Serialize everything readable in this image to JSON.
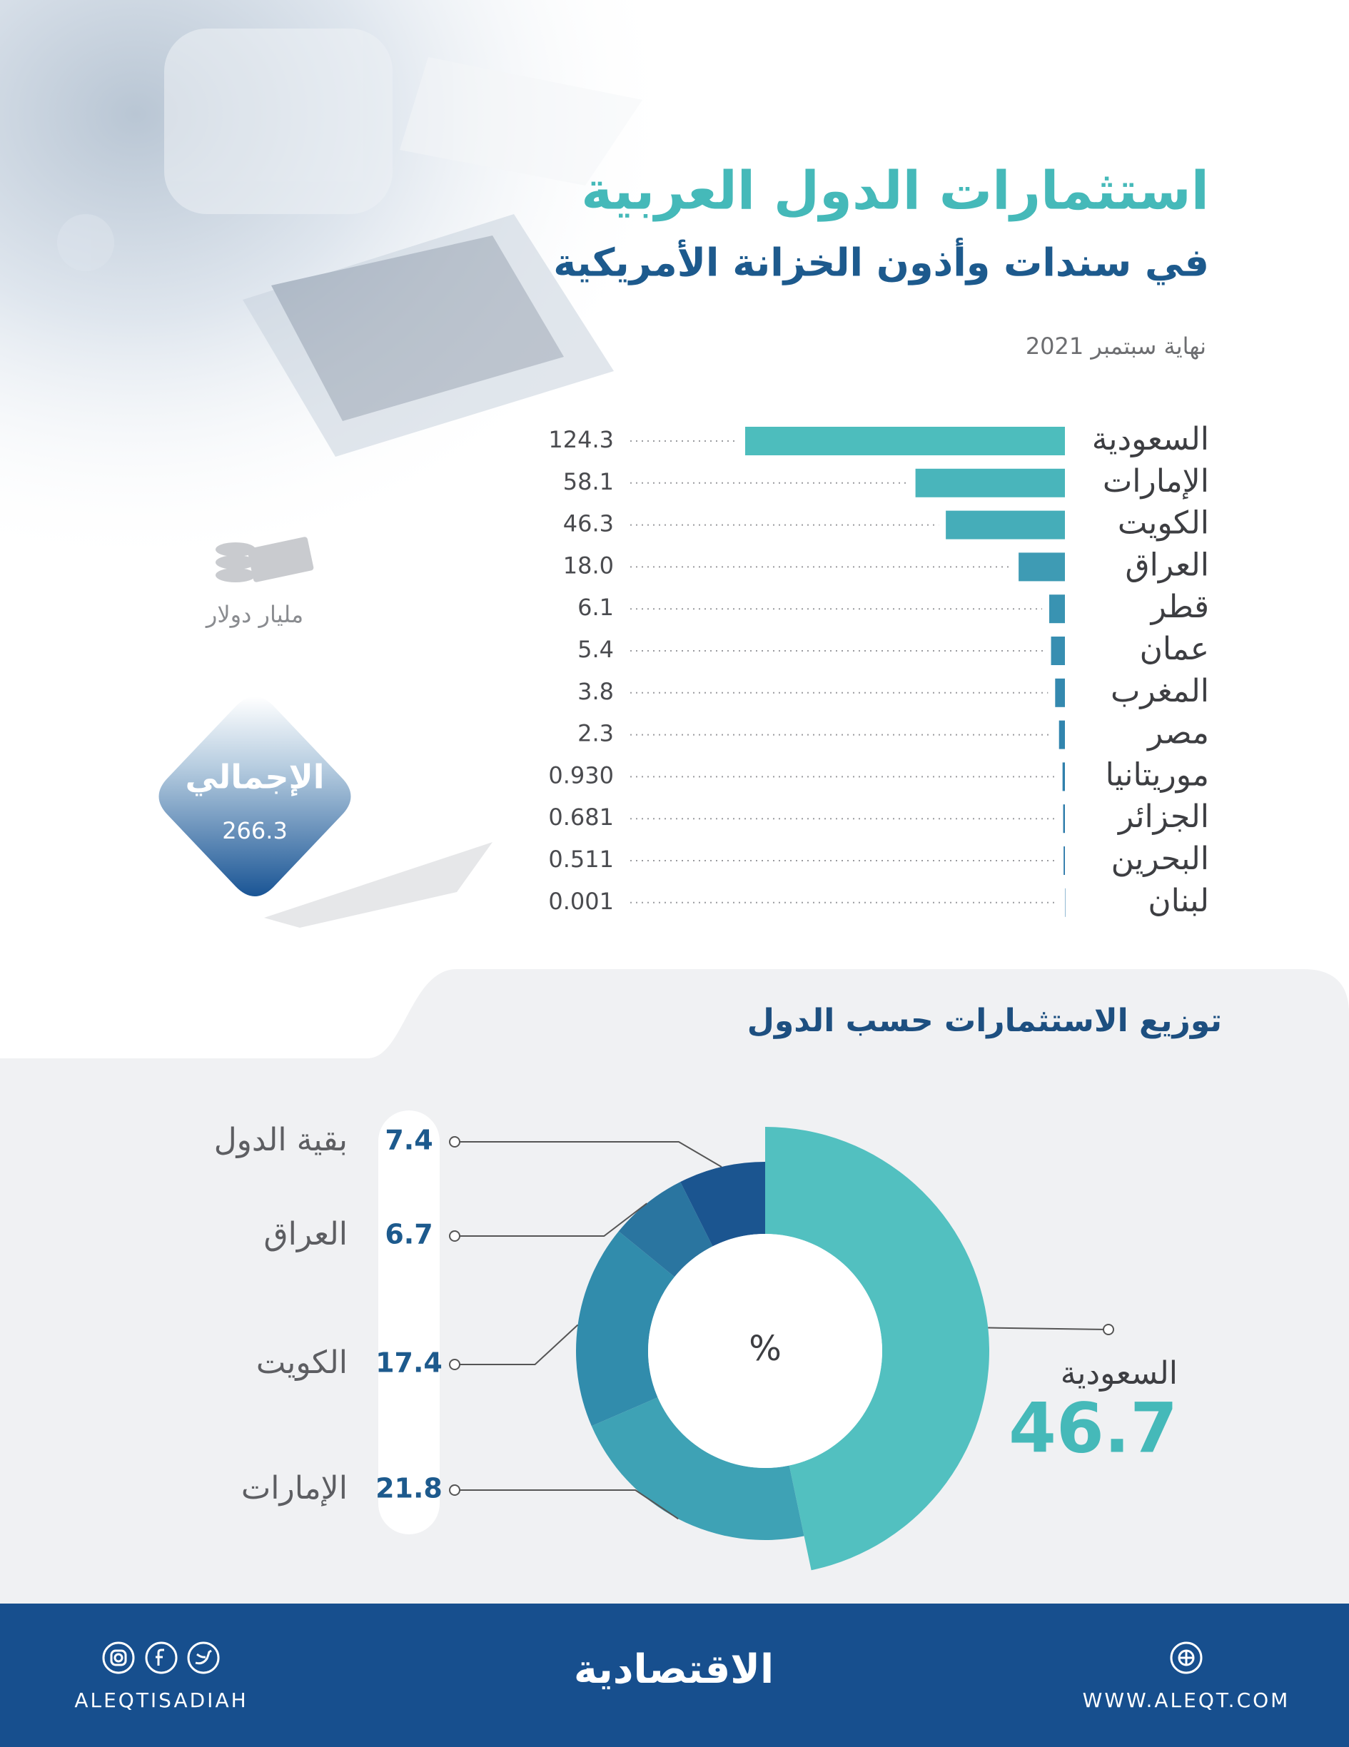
{
  "chart_data": [
    {
      "type": "bar",
      "title": "استثمارات الدول العربية",
      "subtitle": "في سندات وأذون الخزانة الأمريكية",
      "note": "نهاية سبتمبر 2021",
      "unit": "مليار دولار",
      "total_label": "الإجمالي",
      "total": 266.3,
      "categories": [
        "السعودية",
        "الإمارات",
        "الكويت",
        "العراق",
        "قطر",
        "عمان",
        "المغرب",
        "مصر",
        "موريتانيا",
        "الجزائر",
        "البحرين",
        "لبنان"
      ],
      "values": [
        124.3,
        58.1,
        46.3,
        18.0,
        6.1,
        5.4,
        3.8,
        2.3,
        0.93,
        0.681,
        0.511,
        0.001
      ],
      "value_labels": [
        "124.3",
        "58.1",
        "46.3",
        "18.0",
        "6.1",
        "5.4",
        "3.8",
        "2.3",
        "0.930",
        "0.681",
        "0.511",
        "0.001"
      ],
      "colors": [
        "#4dbdbd",
        "#49b5bb",
        "#45adb9",
        "#3e9bb4",
        "#3993b2",
        "#378eb1",
        "#3489af",
        "#3185ae",
        "#2f80ac",
        "#2d7cab",
        "#2b78a9",
        "#2a75a8"
      ]
    },
    {
      "type": "pie",
      "title": "توزيع الاستثمارات حسب الدول",
      "center_label": "%",
      "categories": [
        "السعودية",
        "الإمارات",
        "الكويت",
        "العراق",
        "بقية الدول"
      ],
      "values": [
        46.7,
        21.8,
        17.4,
        6.7,
        7.4
      ],
      "colors": [
        "#52c0c0",
        "#3ea2b5",
        "#318cac",
        "#2a75a0",
        "#1b5590"
      ]
    }
  ],
  "footer": {
    "brand": "الاقتصادية",
    "handle": "ALEQTISADIAH",
    "website": "WWW.ALEQT.COM"
  }
}
